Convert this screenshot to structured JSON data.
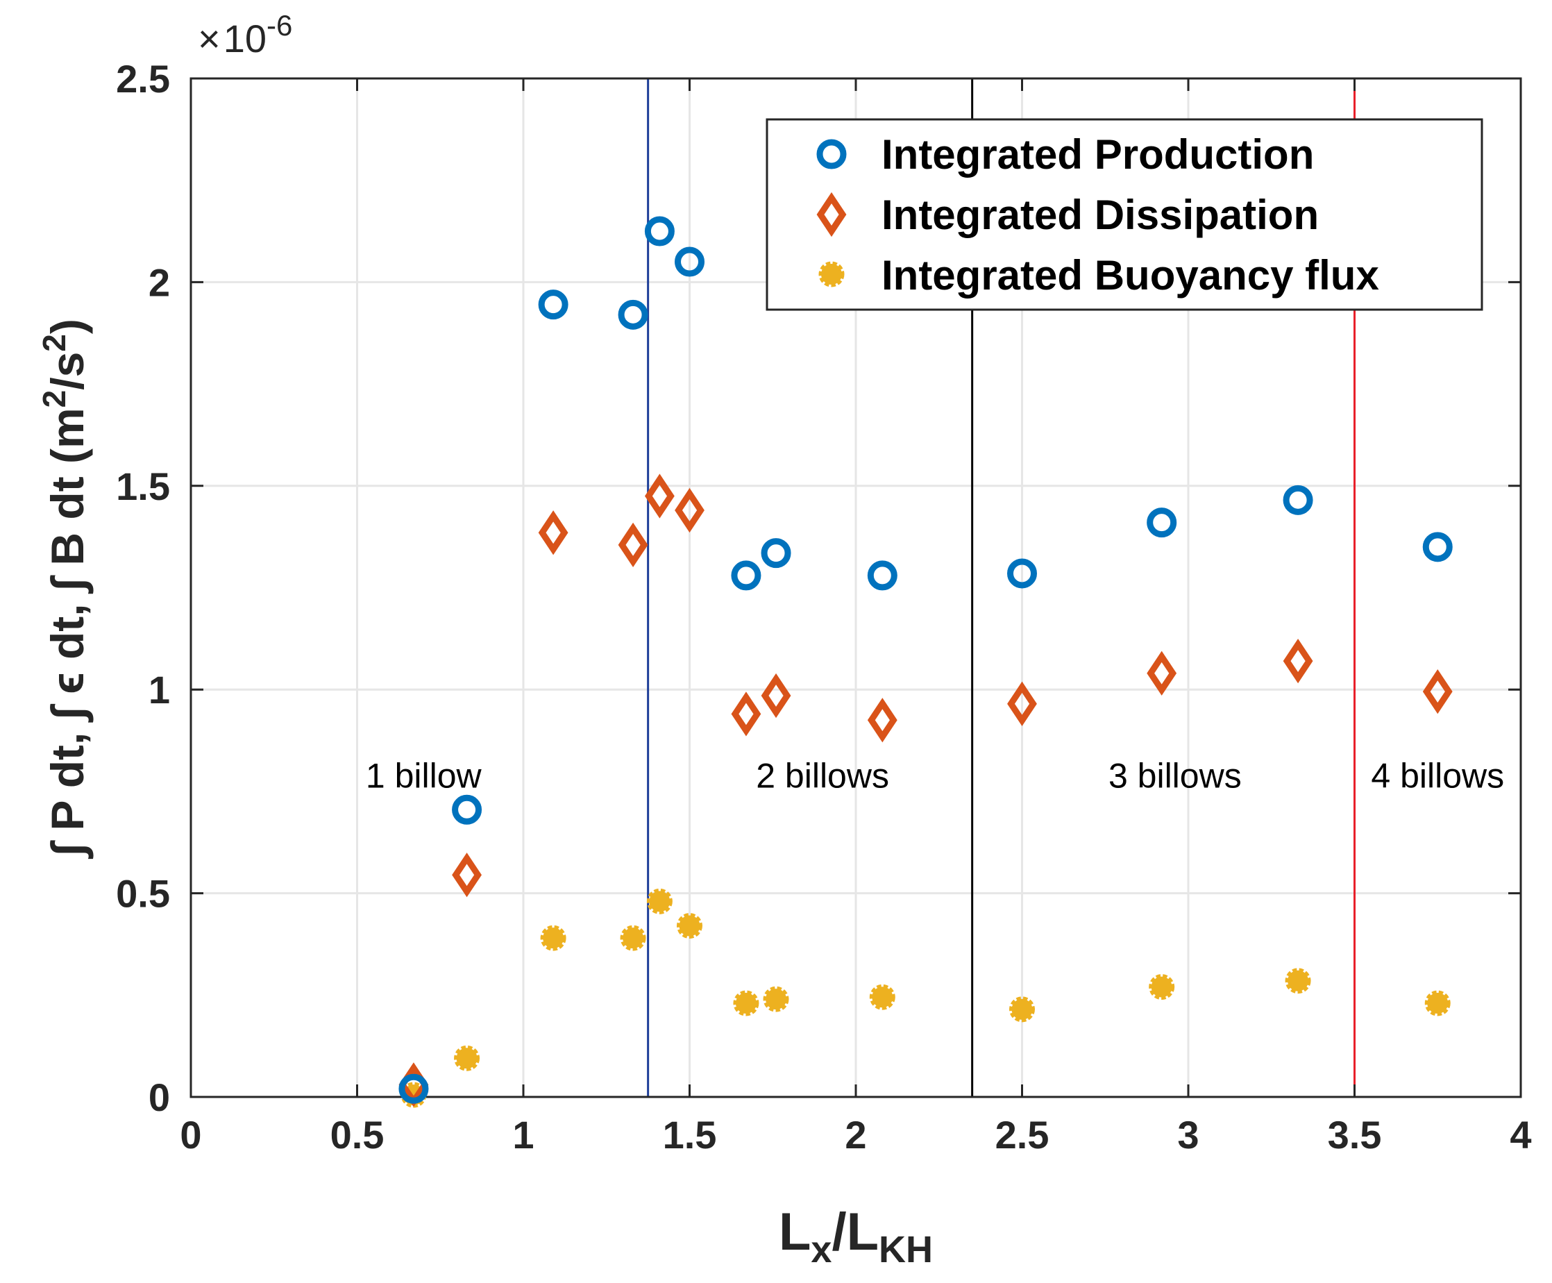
{
  "chart_data": {
    "type": "scatter",
    "xlabel": {
      "main": "L",
      "sub1": "x",
      "slash": "/L",
      "sub2": "KH"
    },
    "ylabel": {
      "text": "∫ P dt, ∫ ϵ dt, ∫ B dt  (m",
      "sup": "2",
      "mid": "/s",
      "sup2": "2",
      "end": ")"
    },
    "exponent": {
      "times": "×",
      "base": "10",
      "power": "-6"
    },
    "xlim": [
      0,
      4
    ],
    "ylim": [
      0,
      2.5
    ],
    "xticks": [
      0,
      0.5,
      1,
      1.5,
      2,
      2.5,
      3,
      3.5,
      4
    ],
    "xtick_labels": [
      "0",
      "0.5",
      "1",
      "1.5",
      "2",
      "2.5",
      "3",
      "3.5",
      "4"
    ],
    "yticks": [
      0,
      0.5,
      1,
      1.5,
      2,
      2.5
    ],
    "ytick_labels": [
      "0",
      "0.5",
      "1",
      "1.5",
      "2",
      "2.5"
    ],
    "grid": true,
    "legend_position": "top-right",
    "series": [
      {
        "name": "Integrated Production",
        "marker": "circle",
        "color": "#0072bd",
        "x": [
          0.67,
          0.83,
          1.09,
          1.33,
          1.41,
          1.5,
          1.67,
          1.76,
          2.08,
          2.5,
          2.92,
          3.33,
          3.75
        ],
        "y": [
          0.02,
          0.705,
          1.945,
          1.92,
          2.125,
          2.05,
          1.28,
          1.335,
          1.28,
          1.285,
          1.41,
          1.465,
          1.35
        ]
      },
      {
        "name": "Integrated Dissipation",
        "marker": "diamond",
        "color": "#d95319",
        "x": [
          0.67,
          0.83,
          1.09,
          1.33,
          1.41,
          1.5,
          1.67,
          1.76,
          2.08,
          2.5,
          2.92,
          3.33,
          3.75
        ],
        "y": [
          0.03,
          0.545,
          1.385,
          1.355,
          1.475,
          1.44,
          0.94,
          0.985,
          0.925,
          0.965,
          1.04,
          1.07,
          0.995
        ]
      },
      {
        "name": "Integrated Buoyancy flux",
        "marker": "filled-circle",
        "color": "#edb120",
        "x": [
          0.67,
          0.83,
          1.09,
          1.33,
          1.41,
          1.5,
          1.67,
          1.76,
          2.08,
          2.5,
          2.92,
          3.33,
          3.75
        ],
        "y": [
          0.005,
          0.095,
          0.39,
          0.39,
          0.48,
          0.42,
          0.23,
          0.24,
          0.245,
          0.215,
          0.27,
          0.285,
          0.23
        ]
      }
    ],
    "vertical_lines": [
      {
        "x": 1.375,
        "color": "#1f3f99"
      },
      {
        "x": 2.35,
        "color": "#000000"
      },
      {
        "x": 3.5,
        "color": "#e8202a"
      }
    ],
    "annotations": [
      {
        "text": "1 billow",
        "x": 0.7,
        "y": 0.79
      },
      {
        "text": "2 billows",
        "x": 1.9,
        "y": 0.79
      },
      {
        "text": "3 billows",
        "x": 2.96,
        "y": 0.79
      },
      {
        "text": "4 billows",
        "x": 3.75,
        "y": 0.79
      }
    ]
  }
}
